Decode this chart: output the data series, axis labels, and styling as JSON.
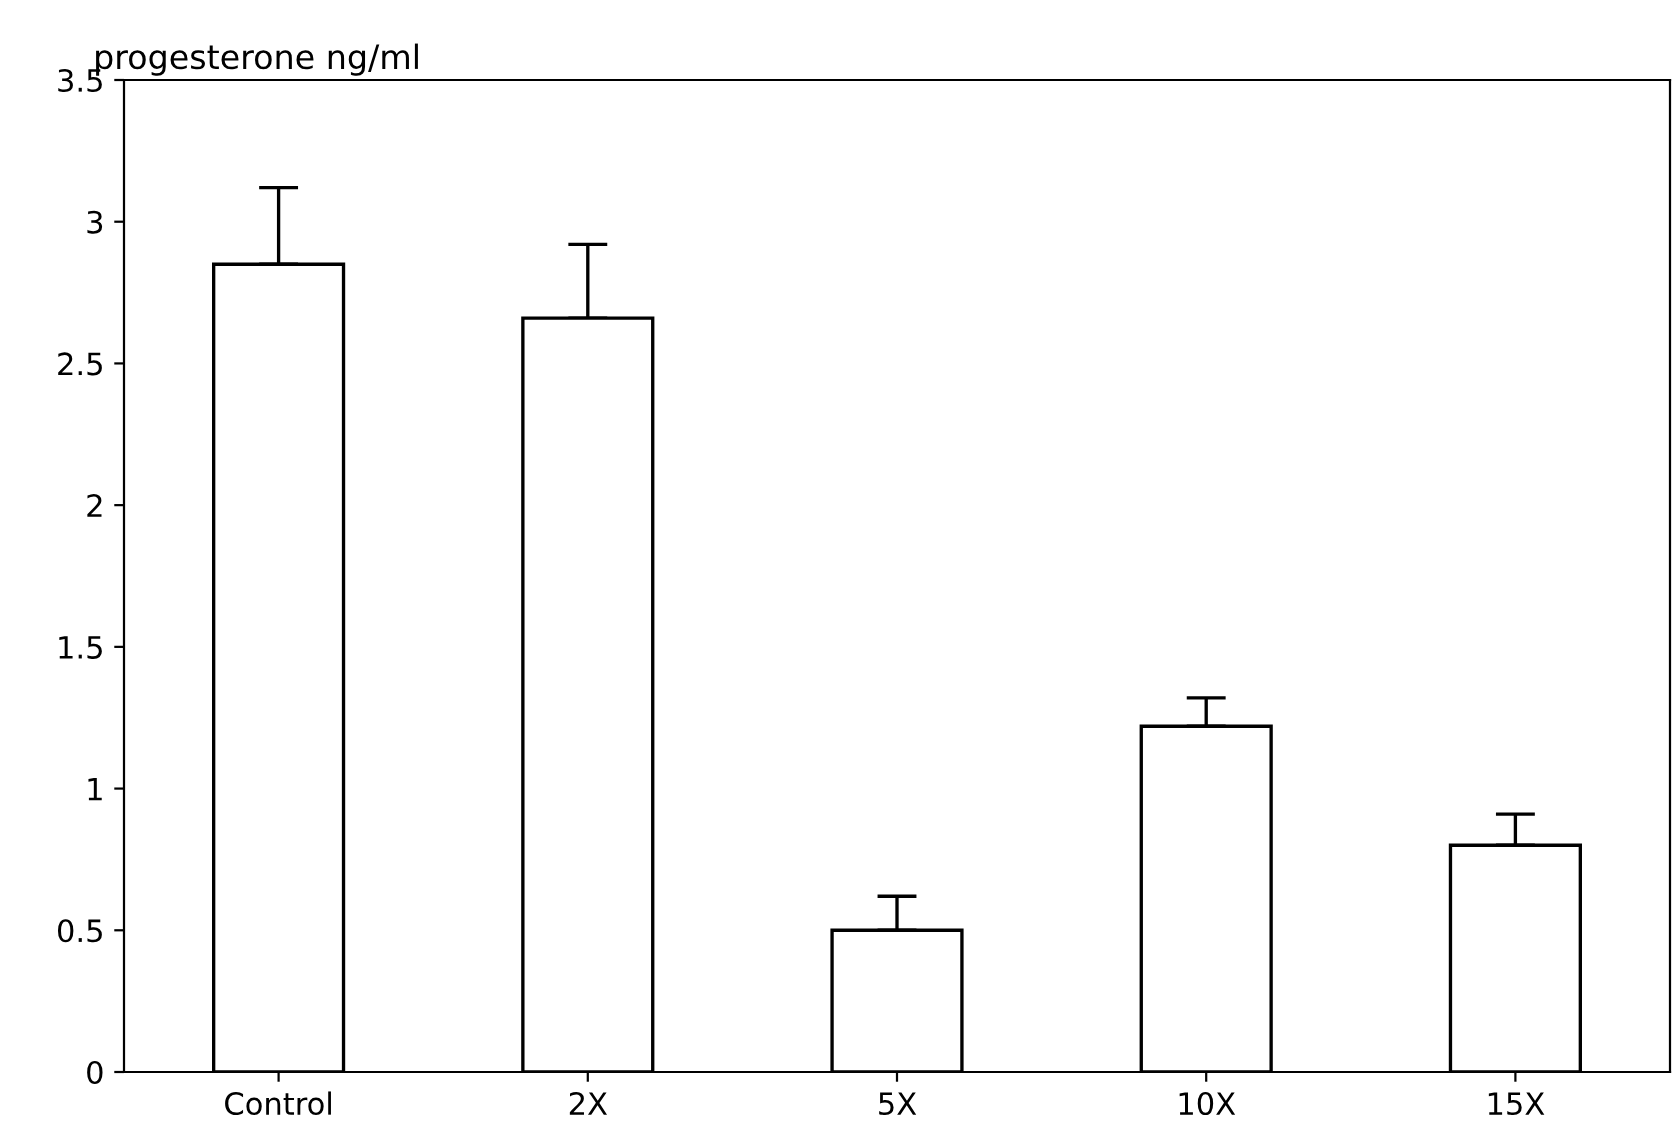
{
  "chart_data": {
    "type": "bar",
    "ylabel": "progesterone ng/ml",
    "categories": [
      "Control",
      "2X",
      "5X",
      "10X",
      "15X"
    ],
    "series": [
      {
        "color": "#ffffff",
        "values": [
          2.85,
          2.66,
          0.5,
          1.22,
          0.8
        ],
        "errors": [
          [
            2.85,
            3.12
          ],
          [
            2.66,
            2.92
          ],
          [
            0.5,
            0.62
          ],
          [
            1.22,
            1.32
          ],
          [
            0.8,
            0.91
          ]
        ]
      }
    ],
    "ylim": [
      0,
      3.5
    ],
    "yticks": [
      0,
      0.5,
      1,
      1.5,
      2,
      2.5,
      3,
      3.5
    ],
    "grid": false
  }
}
